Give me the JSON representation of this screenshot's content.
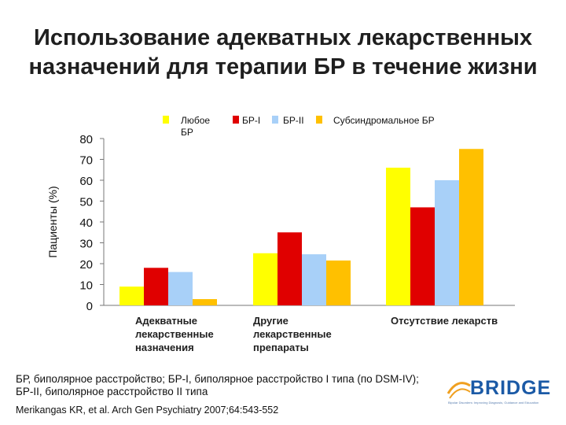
{
  "title": {
    "line1": "Использование адекватных лекарственных",
    "line2": "назначений для терапии БР в течение жизни"
  },
  "chart_data": {
    "type": "bar",
    "ylabel": "Пациенты (%)",
    "ylim": [
      0,
      80
    ],
    "yticks": [
      0,
      10,
      20,
      30,
      40,
      50,
      60,
      70,
      80
    ],
    "categories": [
      [
        "Адекватные",
        "лекарственные",
        "назначения"
      ],
      [
        "Другие",
        "лекарственные",
        "препараты"
      ],
      [
        "Отсутствие лекарств"
      ]
    ],
    "series": [
      {
        "name": "Любое БР",
        "legend_lines": [
          "Любое",
          "БР"
        ],
        "color": "#ffff00",
        "values": [
          9,
          25,
          66
        ]
      },
      {
        "name": "БР-I",
        "legend_lines": [
          "БР-I"
        ],
        "color": "#e00000",
        "values": [
          18,
          35,
          47
        ]
      },
      {
        "name": "БР-II",
        "legend_lines": [
          "БР-II"
        ],
        "color": "#a8d0f8",
        "values": [
          16,
          24.5,
          60
        ]
      },
      {
        "name": "Субсиндромальное БР",
        "legend_lines": [
          "Субсиндромальное БР"
        ],
        "color": "#ffc000",
        "values": [
          3,
          21.5,
          75
        ]
      }
    ],
    "legend_position": "top",
    "grid": false
  },
  "footnote": {
    "line1": "БР, биполярное расстройство; БР-I, биполярное расстройство I типа (по DSM-IV);",
    "line2": "БР-II, биполярное расстройство II типа"
  },
  "citation": "Merikangas KR, et al. Arch Gen Psychiatry 2007;64:543-552",
  "logo": {
    "name": "BRIDGE",
    "tagline": "Bipolar Disorders: Improving Diagnosis, Guidance and Education",
    "color": "#1b5aa6",
    "accent": "#f0a020"
  }
}
